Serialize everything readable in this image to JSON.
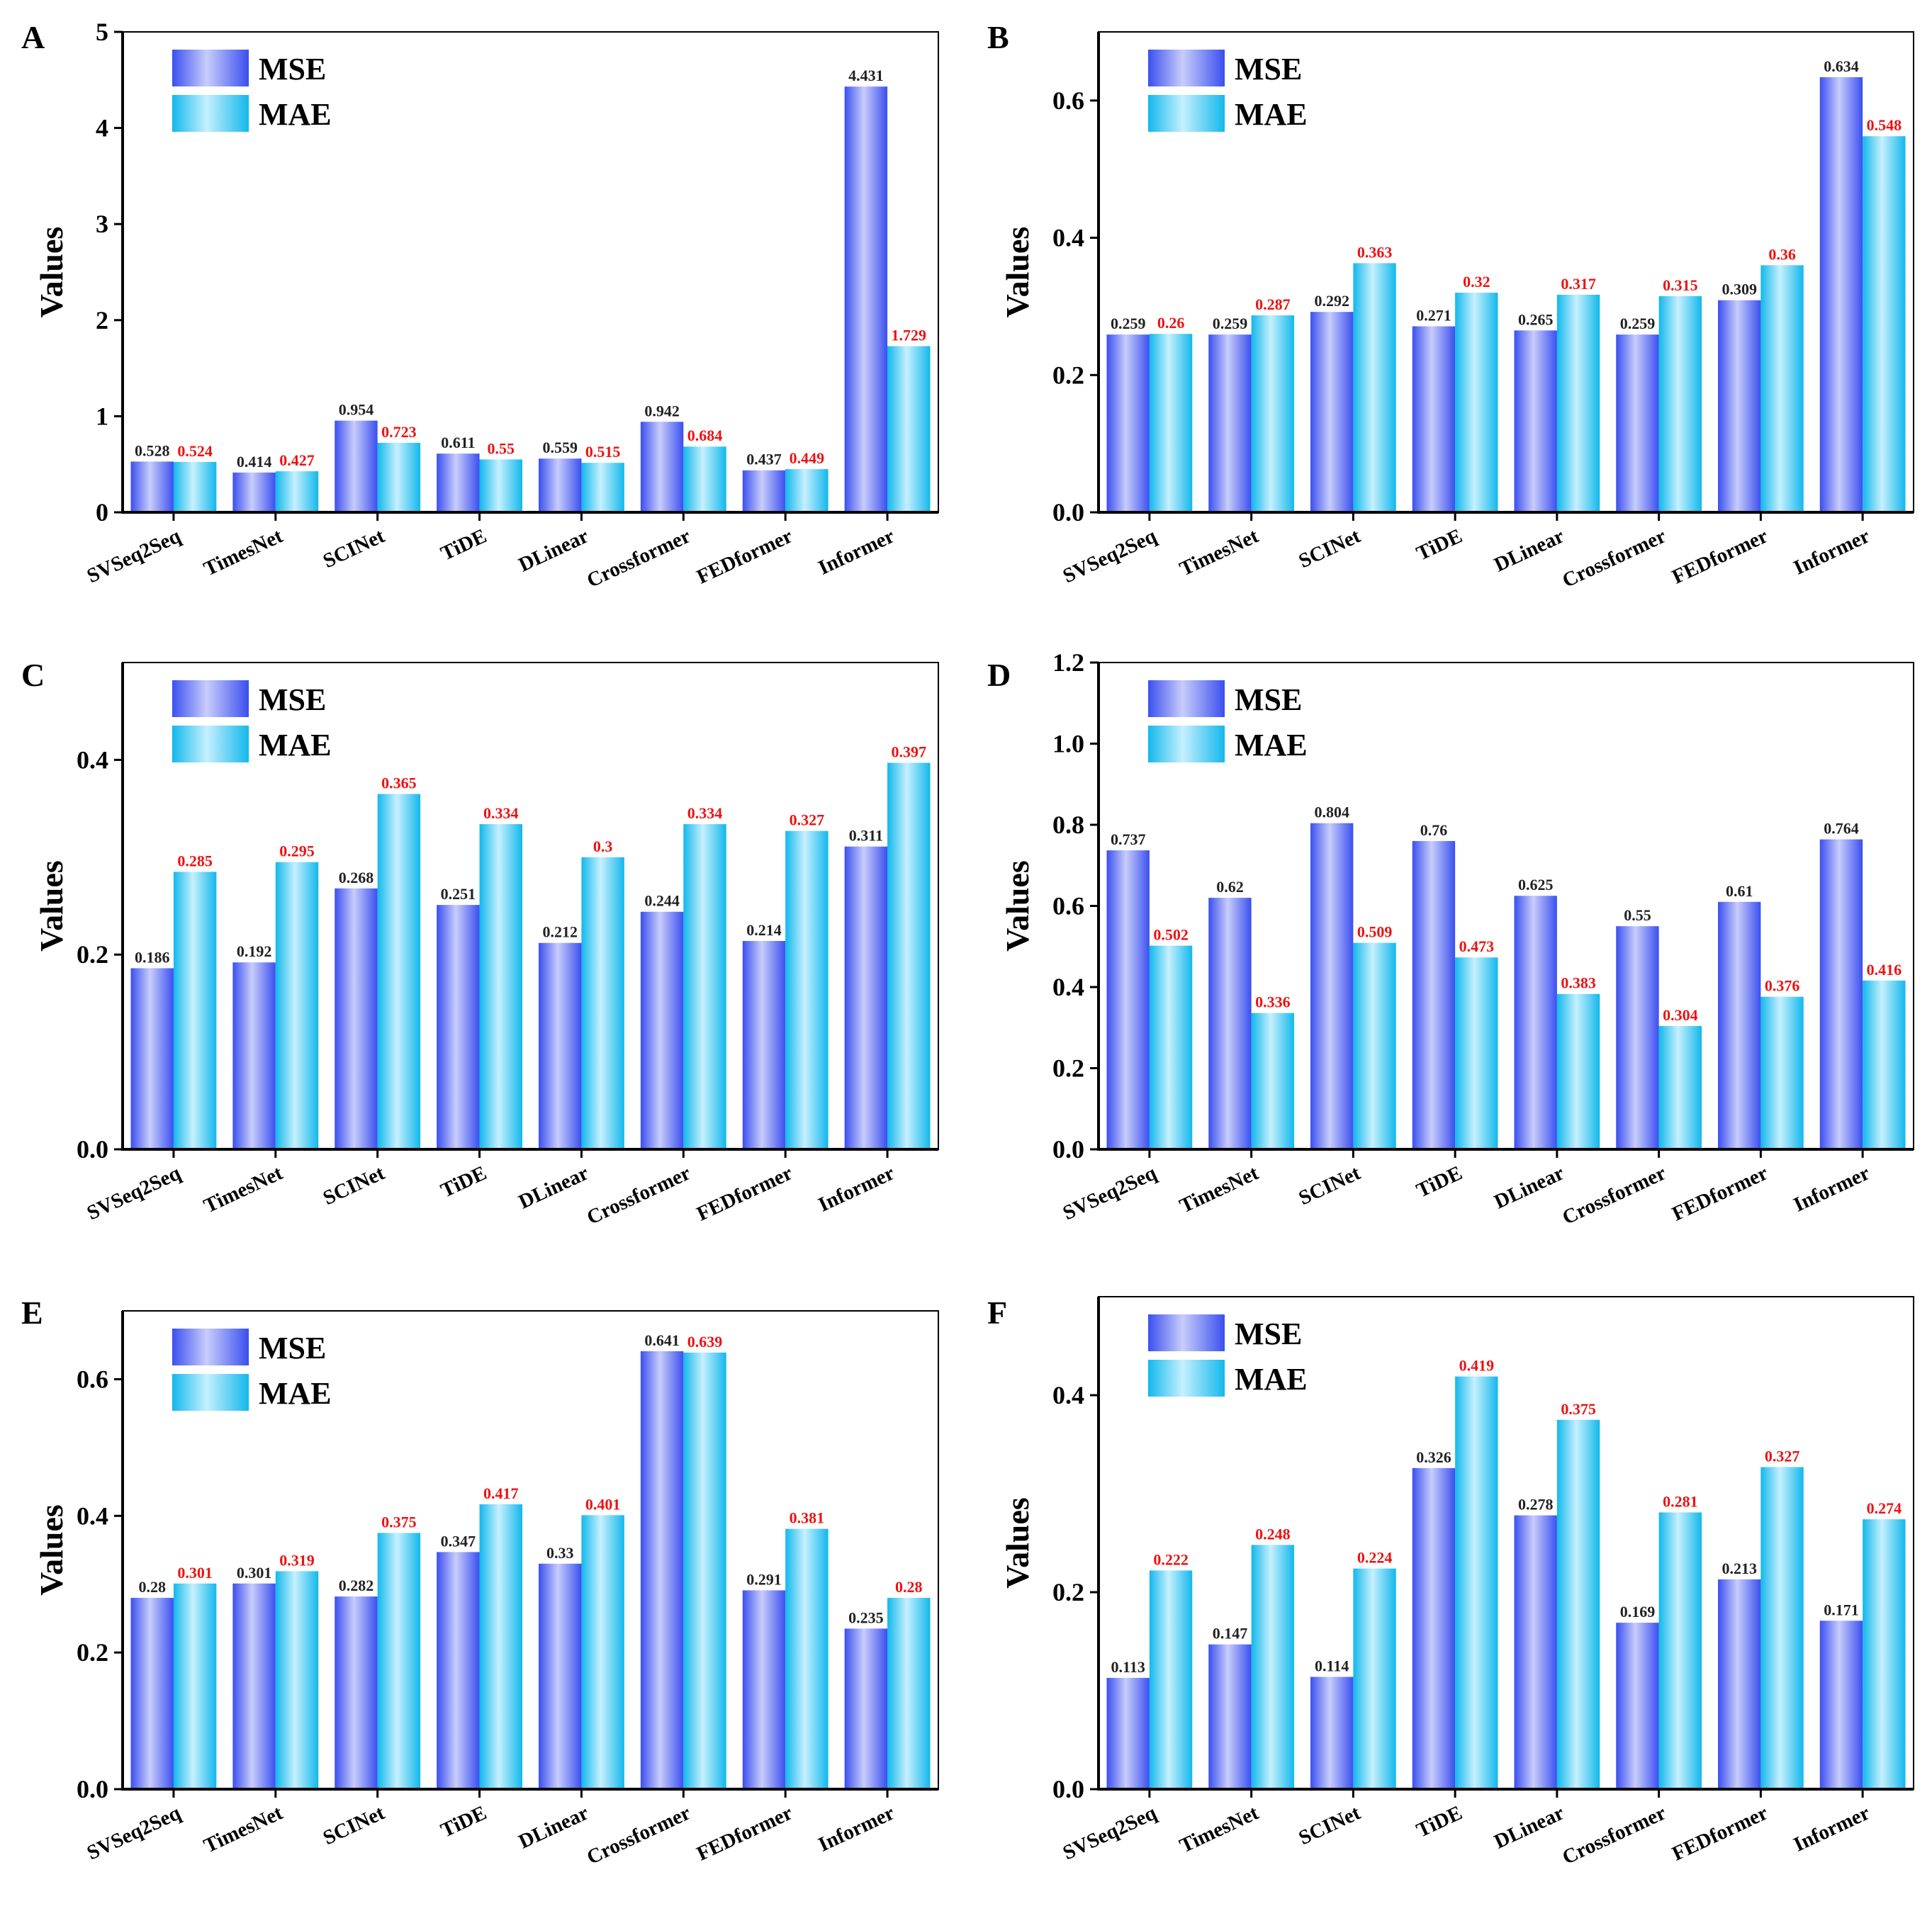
{
  "chart_data": [
    {
      "type": "bar",
      "panel_label": "A",
      "categories": [
        "SVSeq2Seq",
        "TimesNet",
        "SCINet",
        "TiDE",
        "DLinear",
        "Crossformer",
        "FEDformer",
        "Informer"
      ],
      "series": [
        {
          "name": "MSE",
          "values": [
            0.528,
            0.414,
            0.954,
            0.611,
            0.559,
            0.942,
            0.437,
            4.431
          ],
          "labels": [
            "0.528",
            "0.414",
            "0.954",
            "0.611",
            "0.559",
            "0.942",
            "0.437",
            "4.431"
          ]
        },
        {
          "name": "MAE",
          "values": [
            0.524,
            0.427,
            0.723,
            0.55,
            0.515,
            0.684,
            0.449,
            1.729
          ],
          "labels": [
            "0.524",
            "0.427",
            "0.723",
            "0.55",
            "0.515",
            "0.684",
            "0.449",
            "1.729"
          ]
        }
      ],
      "ylabel": "Values",
      "ylim": [
        0,
        5
      ],
      "yticks": [
        0,
        1,
        2,
        3,
        4,
        5
      ],
      "ytick_labels": [
        "0",
        "1",
        "2",
        "3",
        "4",
        "5"
      ],
      "legend": "top-left",
      "grid": false
    },
    {
      "type": "bar",
      "panel_label": "B",
      "categories": [
        "SVSeq2Seq",
        "TimesNet",
        "SCINet",
        "TiDE",
        "DLinear",
        "Crossformer",
        "FEDformer",
        "Informer"
      ],
      "series": [
        {
          "name": "MSE",
          "values": [
            0.259,
            0.259,
            0.292,
            0.271,
            0.265,
            0.259,
            0.309,
            0.634
          ],
          "labels": [
            "0.259",
            "0.259",
            "0.292",
            "0.271",
            "0.265",
            "0.259",
            "0.309",
            "0.634"
          ]
        },
        {
          "name": "MAE",
          "values": [
            0.26,
            0.287,
            0.363,
            0.32,
            0.317,
            0.315,
            0.36,
            0.548
          ],
          "labels": [
            "0.26",
            "0.287",
            "0.363",
            "0.32",
            "0.317",
            "0.315",
            "0.36",
            "0.548"
          ]
        }
      ],
      "ylabel": "Values",
      "ylim": [
        0,
        0.7
      ],
      "yticks": [
        0,
        0.2,
        0.4,
        0.6
      ],
      "ytick_labels": [
        "0.0",
        "0.2",
        "0.4",
        "0.6"
      ],
      "legend": "top-left",
      "grid": false
    },
    {
      "type": "bar",
      "panel_label": "C",
      "categories": [
        "SVSeq2Seq",
        "TimesNet",
        "SCINet",
        "TiDE",
        "DLinear",
        "Crossformer",
        "FEDformer",
        "Informer"
      ],
      "series": [
        {
          "name": "MSE",
          "values": [
            0.186,
            0.192,
            0.268,
            0.251,
            0.212,
            0.244,
            0.214,
            0.311
          ],
          "labels": [
            "0.186",
            "0.192",
            "0.268",
            "0.251",
            "0.212",
            "0.244",
            "0.214",
            "0.311"
          ]
        },
        {
          "name": "MAE",
          "values": [
            0.285,
            0.295,
            0.365,
            0.334,
            0.3,
            0.334,
            0.327,
            0.397
          ],
          "labels": [
            "0.285",
            "0.295",
            "0.365",
            "0.334",
            "0.3",
            "0.334",
            "0.327",
            "0.397"
          ]
        }
      ],
      "ylabel": "Values",
      "ylim": [
        0,
        0.5
      ],
      "yticks": [
        0,
        0.2,
        0.4
      ],
      "ytick_labels": [
        "0.0",
        "0.2",
        "0.4"
      ],
      "legend": "top-left",
      "grid": false
    },
    {
      "type": "bar",
      "panel_label": "D",
      "categories": [
        "SVSeq2Seq",
        "TimesNet",
        "SCINet",
        "TiDE",
        "DLinear",
        "Crossformer",
        "FEDformer",
        "Informer"
      ],
      "series": [
        {
          "name": "MSE",
          "values": [
            0.737,
            0.62,
            0.804,
            0.76,
            0.625,
            0.55,
            0.61,
            0.764
          ],
          "labels": [
            "0.737",
            "0.62",
            "0.804",
            "0.76",
            "0.625",
            "0.55",
            "0.61",
            "0.764"
          ]
        },
        {
          "name": "MAE",
          "values": [
            0.502,
            0.336,
            0.509,
            0.473,
            0.383,
            0.304,
            0.376,
            0.416
          ],
          "labels": [
            "0.502",
            "0.336",
            "0.509",
            "0.473",
            "0.383",
            "0.304",
            "0.376",
            "0.416"
          ]
        }
      ],
      "ylabel": "Values",
      "ylim": [
        0,
        1.2
      ],
      "yticks": [
        0,
        0.2,
        0.4,
        0.6,
        0.8,
        1.0,
        1.2
      ],
      "ytick_labels": [
        "0.0",
        "0.2",
        "0.4",
        "0.6",
        "0.8",
        "1.0",
        "1.2"
      ],
      "legend": "top-left",
      "grid": false
    },
    {
      "type": "bar",
      "panel_label": "E",
      "categories": [
        "SVSeq2Seq",
        "TimesNet",
        "SCINet",
        "TiDE",
        "DLinear",
        "Crossformer",
        "FEDformer",
        "Informer"
      ],
      "series": [
        {
          "name": "MSE",
          "values": [
            0.28,
            0.301,
            0.282,
            0.347,
            0.33,
            0.641,
            0.291,
            0.235
          ],
          "labels": [
            "0.28",
            "0.301",
            "0.282",
            "0.347",
            "0.33",
            "0.641",
            "0.291",
            "0.235"
          ]
        },
        {
          "name": "MAE",
          "values": [
            0.301,
            0.319,
            0.375,
            0.417,
            0.401,
            0.639,
            0.381,
            0.28
          ],
          "labels": [
            "0.301",
            "0.319",
            "0.375",
            "0.417",
            "0.401",
            "0.639",
            "0.381",
            "0.28"
          ]
        }
      ],
      "ylabel": "Values",
      "ylim": [
        0,
        0.7
      ],
      "yticks": [
        0,
        0.2,
        0.4,
        0.6
      ],
      "ytick_labels": [
        "0.0",
        "0.2",
        "0.4",
        "0.6"
      ],
      "legend": "top-left",
      "grid": false
    },
    {
      "type": "bar",
      "panel_label": "F",
      "categories": [
        "SVSeq2Seq",
        "TimesNet",
        "SCINet",
        "TiDE",
        "DLinear",
        "Crossformer",
        "FEDformer",
        "Informer"
      ],
      "series": [
        {
          "name": "MSE",
          "values": [
            0.113,
            0.147,
            0.114,
            0.326,
            0.278,
            0.169,
            0.213,
            0.171
          ],
          "labels": [
            "0.113",
            "0.147",
            "0.114",
            "0.326",
            "0.278",
            "0.169",
            "0.213",
            "0.171"
          ]
        },
        {
          "name": "MAE",
          "values": [
            0.222,
            0.248,
            0.224,
            0.419,
            0.375,
            0.281,
            0.327,
            0.274
          ],
          "labels": [
            "0.222",
            "0.248",
            "0.224",
            "0.419",
            "0.375",
            "0.281",
            "0.327",
            "0.274"
          ]
        }
      ],
      "ylabel": "Values",
      "ylim": [
        0,
        0.5
      ],
      "yticks": [
        0,
        0.2,
        0.4
      ],
      "ytick_labels": [
        "0.0",
        "0.2",
        "0.4"
      ],
      "legend": "top-left",
      "grid": false
    }
  ],
  "colors": {
    "mse_edge": "#3a4ff0",
    "mse_light": "#c8cdfb",
    "mae_edge": "#12b8ec",
    "mae_light": "#c6f0fe",
    "mse_label": "#222222",
    "mae_label": "#ee1111",
    "axis": "#000000"
  }
}
